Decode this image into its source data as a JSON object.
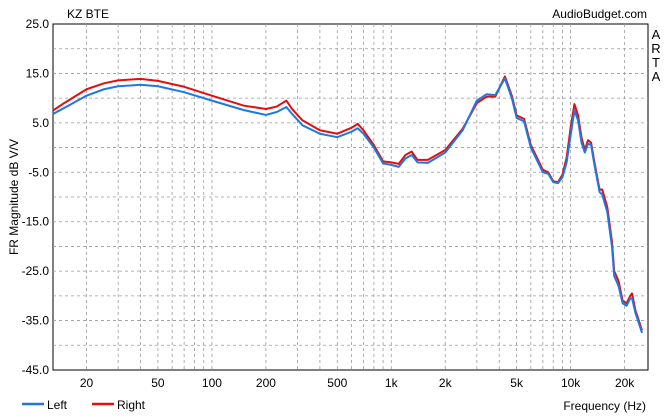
{
  "chart_data": {
    "type": "line",
    "title": "KZ BTE",
    "watermark": "AudioBudget.com",
    "side_label": "ARTA",
    "xlabel": "Frequency (Hz)",
    "ylabel": "FR Magnitude dB V/V",
    "x_scale": "log",
    "xlim": [
      13,
      27000
    ],
    "ylim": [
      -45,
      25
    ],
    "grid": true,
    "legend_position": "bottom-left",
    "x_ticks": [
      {
        "value": 20,
        "label": "20"
      },
      {
        "value": 50,
        "label": "50"
      },
      {
        "value": 100,
        "label": "100"
      },
      {
        "value": 200,
        "label": "200"
      },
      {
        "value": 500,
        "label": "500"
      },
      {
        "value": 1000,
        "label": "1k"
      },
      {
        "value": 2000,
        "label": "2k"
      },
      {
        "value": 5000,
        "label": "5k"
      },
      {
        "value": 10000,
        "label": "10k"
      },
      {
        "value": 20000,
        "label": "20k"
      }
    ],
    "y_ticks": [
      {
        "value": 25,
        "label": "25.0"
      },
      {
        "value": 15,
        "label": "15.0"
      },
      {
        "value": 5,
        "label": "5.0"
      },
      {
        "value": -5,
        "label": "-5.0"
      },
      {
        "value": -15,
        "label": "-15.0"
      },
      {
        "value": -25,
        "label": "-25.0"
      },
      {
        "value": -35,
        "label": "-35.0"
      },
      {
        "value": -45,
        "label": "-45.0"
      }
    ],
    "series": [
      {
        "name": "Left",
        "color": "#1f78e0",
        "points": [
          [
            13,
            6.8
          ],
          [
            15,
            8
          ],
          [
            20,
            10.5
          ],
          [
            25,
            11.8
          ],
          [
            30,
            12.4
          ],
          [
            40,
            12.7
          ],
          [
            50,
            12.4
          ],
          [
            70,
            11.2
          ],
          [
            100,
            9.5
          ],
          [
            150,
            7.6
          ],
          [
            200,
            6.6
          ],
          [
            230,
            7.2
          ],
          [
            260,
            8.2
          ],
          [
            280,
            6.8
          ],
          [
            320,
            4.5
          ],
          [
            400,
            2.8
          ],
          [
            500,
            2.1
          ],
          [
            600,
            3.2
          ],
          [
            650,
            3.9
          ],
          [
            700,
            2.8
          ],
          [
            800,
            0
          ],
          [
            900,
            -3.2
          ],
          [
            1000,
            -3.5
          ],
          [
            1100,
            -3.9
          ],
          [
            1200,
            -2.2
          ],
          [
            1300,
            -1.5
          ],
          [
            1400,
            -3
          ],
          [
            1600,
            -3.1
          ],
          [
            2000,
            -1
          ],
          [
            2500,
            3.5
          ],
          [
            3000,
            9.5
          ],
          [
            3400,
            10.8
          ],
          [
            3800,
            10.6
          ],
          [
            4300,
            14
          ],
          [
            4700,
            10
          ],
          [
            5000,
            6
          ],
          [
            5500,
            5.3
          ],
          [
            6000,
            0
          ],
          [
            7000,
            -5
          ],
          [
            7500,
            -5.3
          ],
          [
            8000,
            -7
          ],
          [
            8500,
            -7.2
          ],
          [
            9000,
            -6
          ],
          [
            9500,
            -3
          ],
          [
            10000,
            2.5
          ],
          [
            10500,
            7.5
          ],
          [
            11000,
            5.5
          ],
          [
            11500,
            1
          ],
          [
            12000,
            -1
          ],
          [
            12500,
            0.8
          ],
          [
            13000,
            0.5
          ],
          [
            13500,
            -3
          ],
          [
            14500,
            -9
          ],
          [
            15000,
            -9.5
          ],
          [
            16000,
            -13
          ],
          [
            17000,
            -20
          ],
          [
            17500,
            -26
          ],
          [
            18500,
            -28
          ],
          [
            19500,
            -31.5
          ],
          [
            20500,
            -32
          ],
          [
            21500,
            -30.5
          ],
          [
            22000,
            -30.5
          ],
          [
            23000,
            -33.5
          ],
          [
            24000,
            -35.5
          ],
          [
            25000,
            -37.5
          ]
        ]
      },
      {
        "name": "Right",
        "color": "#e01010",
        "points": [
          [
            13,
            7.5
          ],
          [
            15,
            9
          ],
          [
            20,
            11.8
          ],
          [
            25,
            13
          ],
          [
            30,
            13.6
          ],
          [
            40,
            13.9
          ],
          [
            50,
            13.5
          ],
          [
            70,
            12.3
          ],
          [
            100,
            10.5
          ],
          [
            150,
            8.5
          ],
          [
            200,
            7.8
          ],
          [
            230,
            8.3
          ],
          [
            260,
            9.5
          ],
          [
            280,
            7.8
          ],
          [
            320,
            5.5
          ],
          [
            400,
            3.5
          ],
          [
            500,
            2.8
          ],
          [
            600,
            4
          ],
          [
            650,
            4.8
          ],
          [
            700,
            3.5
          ],
          [
            800,
            0.5
          ],
          [
            900,
            -2.8
          ],
          [
            1000,
            -3
          ],
          [
            1100,
            -3.3
          ],
          [
            1200,
            -1.5
          ],
          [
            1300,
            -0.8
          ],
          [
            1400,
            -2.5
          ],
          [
            1600,
            -2.5
          ],
          [
            2000,
            -0.5
          ],
          [
            2500,
            3.8
          ],
          [
            3000,
            9
          ],
          [
            3400,
            10.3
          ],
          [
            3800,
            10.3
          ],
          [
            4300,
            14.4
          ],
          [
            4700,
            10.5
          ],
          [
            5000,
            6.5
          ],
          [
            5500,
            5.8
          ],
          [
            6000,
            0.5
          ],
          [
            7000,
            -4.5
          ],
          [
            7500,
            -5
          ],
          [
            8000,
            -6.8
          ],
          [
            8500,
            -7
          ],
          [
            9000,
            -5.5
          ],
          [
            9500,
            -2
          ],
          [
            10000,
            4
          ],
          [
            10500,
            8.8
          ],
          [
            11000,
            6.5
          ],
          [
            11500,
            2
          ],
          [
            12000,
            -0.5
          ],
          [
            12500,
            1.5
          ],
          [
            13000,
            1
          ],
          [
            13500,
            -2.5
          ],
          [
            14500,
            -8.5
          ],
          [
            15000,
            -8.5
          ],
          [
            16000,
            -12
          ],
          [
            17000,
            -19
          ],
          [
            17500,
            -25
          ],
          [
            18500,
            -27
          ],
          [
            19500,
            -31
          ],
          [
            20500,
            -31.5
          ],
          [
            21500,
            -30
          ],
          [
            22000,
            -29.5
          ],
          [
            23000,
            -33
          ],
          [
            24000,
            -35
          ],
          [
            25000,
            -37
          ]
        ]
      }
    ]
  }
}
